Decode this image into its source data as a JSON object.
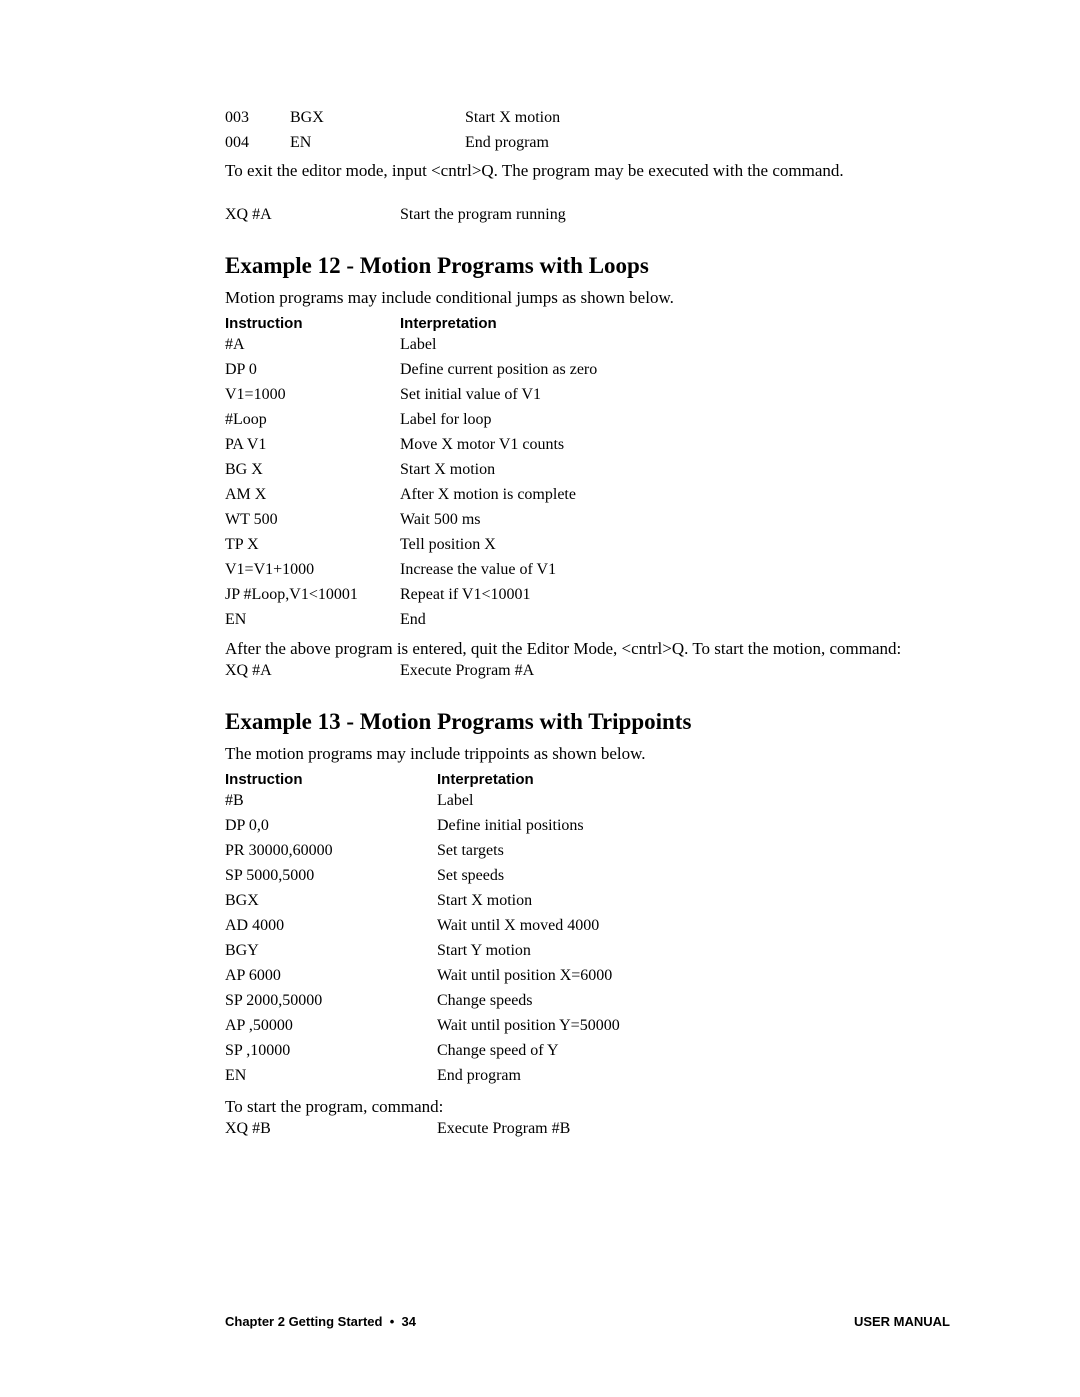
{
  "top_table": {
    "rows": [
      {
        "line": "003",
        "cmd": "BGX",
        "int": "Start X motion"
      },
      {
        "line": "004",
        "cmd": "EN",
        "int": "End program"
      }
    ]
  },
  "para1": "To exit the editor mode, input <cntrl>Q.  The program may be executed with the command.",
  "xq_a_row": {
    "cmd": "XQ #A",
    "int": "Start the program running"
  },
  "ex12_title": "Example 12 - Motion Programs with Loops",
  "ex12_intro": "Motion programs may include conditional jumps as shown below.",
  "ex12_head": {
    "c1": "Instruction",
    "c2": "Interpretation"
  },
  "ex12_rows": [
    {
      "cmd": "#A",
      "int": "Label"
    },
    {
      "cmd": "DP 0",
      "int": "Define current position as zero"
    },
    {
      "cmd": "V1=1000",
      "int": "Set initial value of V1"
    },
    {
      "cmd": "#Loop",
      "int": "Label for loop"
    },
    {
      "cmd": "PA V1",
      "int": "Move X motor V1 counts"
    },
    {
      "cmd": "BG X",
      "int": "Start X motion"
    },
    {
      "cmd": "AM X",
      "int": "After X motion is complete"
    },
    {
      "cmd": "WT 500",
      "int": "Wait 500 ms"
    },
    {
      "cmd": "TP X",
      "int": "Tell position X"
    },
    {
      "cmd": "V1=V1+1000",
      "int": "Increase the value of V1"
    },
    {
      "cmd": "JP #Loop,V1<10001",
      "int": "Repeat if V1<10001"
    },
    {
      "cmd": "EN",
      "int": "End"
    }
  ],
  "ex12_after": "After the above program is entered, quit the Editor Mode, <cntrl>Q.  To start the motion, command:",
  "ex12_exec": {
    "cmd": "XQ #A",
    "int": "Execute Program #A"
  },
  "ex13_title": "Example 13 - Motion Programs with Trippoints",
  "ex13_intro": "The motion programs may include trippoints as shown below.",
  "ex13_head": {
    "c1": "Instruction",
    "c2": "Interpretation"
  },
  "ex13_rows": [
    {
      "cmd": "#B",
      "int": "Label"
    },
    {
      "cmd": "DP 0,0",
      "int": "Define initial positions"
    },
    {
      "cmd": "PR 30000,60000",
      "int": "Set targets"
    },
    {
      "cmd": "SP 5000,5000",
      "int": "Set speeds"
    },
    {
      "cmd": "BGX",
      "int": "Start X motion"
    },
    {
      "cmd": "AD 4000",
      "int": "Wait until X moved 4000"
    },
    {
      "cmd": "BGY",
      "int": "Start Y motion"
    },
    {
      "cmd": "AP 6000",
      "int": "Wait until position X=6000"
    },
    {
      "cmd": "SP 2000,50000",
      "int": "Change speeds"
    },
    {
      "cmd": "AP ,50000",
      "int": "Wait until position Y=50000"
    },
    {
      "cmd": "SP ,10000",
      "int": "Change speed of Y"
    },
    {
      "cmd": "EN",
      "int": "End program"
    }
  ],
  "ex13_after": "To start the program, command:",
  "ex13_exec": {
    "cmd": "XQ #B",
    "int": "Execute Program #B"
  },
  "footer": {
    "left_a": "Chapter 2  Getting Started",
    "left_b": "34",
    "right": "USER MANUAL"
  }
}
